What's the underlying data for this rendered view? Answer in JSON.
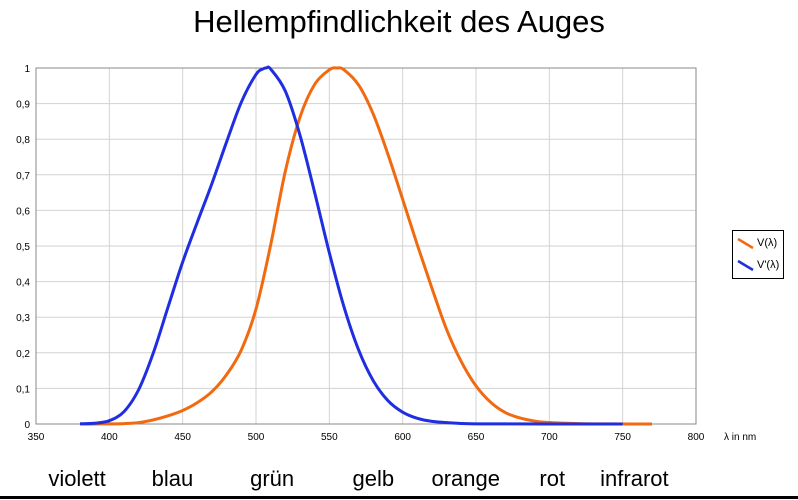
{
  "chart_data": {
    "type": "line",
    "title": "Hellempfindlichkeit des Auges",
    "xlabel": "λ in nm",
    "ylabel": "",
    "xlim": [
      350,
      800
    ],
    "ylim": [
      0,
      1
    ],
    "grid": true,
    "legend_position": "right",
    "x_ticks": [
      "350",
      "400",
      "450",
      "500",
      "550",
      "600",
      "650",
      "700",
      "750",
      "800"
    ],
    "y_ticks": [
      "0",
      "0,1",
      "0,2",
      "0,3",
      "0,4",
      "0,5",
      "0,6",
      "0,7",
      "0,8",
      "0,9",
      "1"
    ],
    "series": [
      {
        "name": "V(λ)",
        "color": "#f26a10",
        "x": [
          380,
          390,
          400,
          410,
          420,
          430,
          440,
          450,
          460,
          470,
          480,
          490,
          500,
          510,
          520,
          530,
          540,
          550,
          555,
          560,
          570,
          580,
          590,
          600,
          610,
          620,
          630,
          640,
          650,
          660,
          670,
          680,
          690,
          700,
          720,
          740,
          770
        ],
        "values": [
          0.0,
          0.0001,
          0.0004,
          0.0012,
          0.004,
          0.0116,
          0.023,
          0.038,
          0.06,
          0.091,
          0.139,
          0.208,
          0.323,
          0.503,
          0.71,
          0.862,
          0.954,
          0.995,
          1.0,
          0.995,
          0.952,
          0.87,
          0.757,
          0.631,
          0.503,
          0.381,
          0.265,
          0.175,
          0.107,
          0.061,
          0.032,
          0.017,
          0.0082,
          0.0041,
          0.001,
          0.0003,
          0.0
        ]
      },
      {
        "name": "V'(λ)",
        "color": "#1f2ee0",
        "x": [
          380,
          390,
          400,
          410,
          420,
          430,
          440,
          450,
          460,
          470,
          480,
          490,
          500,
          505,
          507,
          510,
          520,
          530,
          540,
          550,
          560,
          570,
          580,
          590,
          600,
          610,
          620,
          640,
          660,
          700,
          750
        ],
        "values": [
          0.0006,
          0.0022,
          0.0093,
          0.0348,
          0.0966,
          0.1998,
          0.3281,
          0.455,
          0.567,
          0.676,
          0.793,
          0.904,
          0.982,
          0.998,
          1.0,
          0.997,
          0.935,
          0.811,
          0.65,
          0.481,
          0.3288,
          0.2076,
          0.1212,
          0.0655,
          0.0332,
          0.0159,
          0.0074,
          0.0015,
          0.0003,
          0.0,
          0.0
        ]
      }
    ]
  },
  "bands": [
    {
      "label": "violett",
      "x": 378
    },
    {
      "label": "blau",
      "x": 443
    },
    {
      "label": "grün",
      "x": 511
    },
    {
      "label": "gelb",
      "x": 580
    },
    {
      "label": "orange",
      "x": 643
    },
    {
      "label": "rot",
      "x": 702
    },
    {
      "label": "infrarot",
      "x": 758
    }
  ]
}
